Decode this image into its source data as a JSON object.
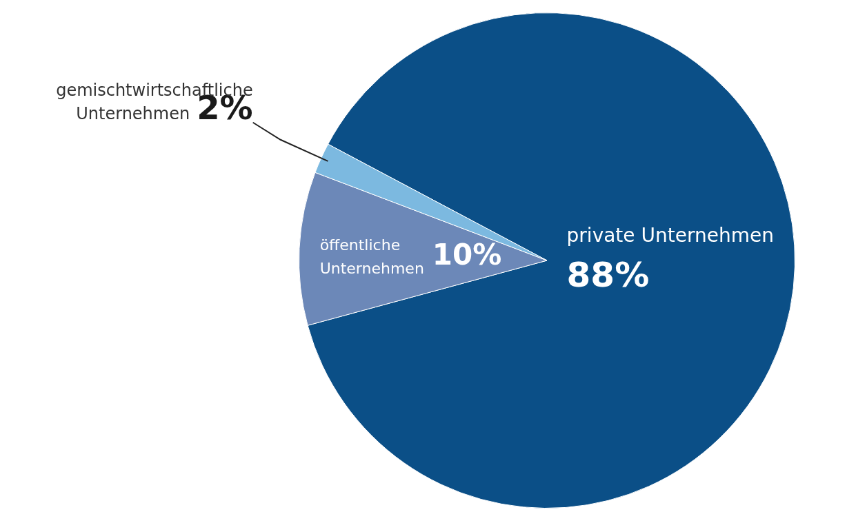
{
  "chart_data": {
    "type": "pie",
    "categories": [
      "private Unternehmen",
      "öffentliche Unternehmen",
      "gemischtwirtschaftliche Unternehmen"
    ],
    "values": [
      88,
      10,
      2
    ],
    "value_labels": [
      "88%",
      "10%",
      "2%"
    ],
    "colors": [
      "#0b4f87",
      "#6c88b8",
      "#7cb9e0"
    ]
  }
}
